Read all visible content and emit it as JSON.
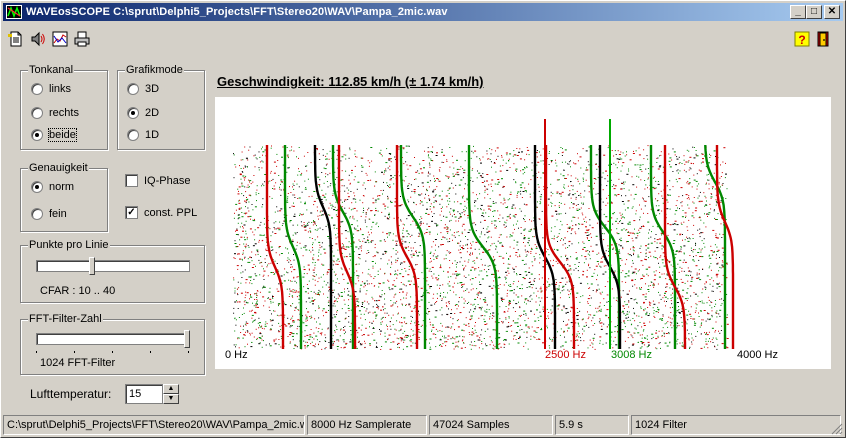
{
  "window": {
    "title": "WAVEosSCOPE  C:\\sprut\\Delphi5_Projects\\FFT\\Stereo20\\WAV\\Pampa_2mic.wav",
    "buttons": {
      "minimize": "_",
      "maximize": "□",
      "close": "✕"
    }
  },
  "toolbar": {
    "left": [
      {
        "name": "open-file-icon"
      },
      {
        "name": "audio-icon"
      },
      {
        "name": "chart-icon"
      },
      {
        "name": "print-icon"
      }
    ],
    "right": [
      {
        "name": "help-icon"
      },
      {
        "name": "exit-icon"
      }
    ]
  },
  "tonkanal": {
    "label": "Tonkanal",
    "options": [
      "links",
      "rechts",
      "beide"
    ],
    "selected": "beide"
  },
  "grafikmode": {
    "label": "Grafikmode",
    "options": [
      "3D",
      "2D",
      "1D"
    ],
    "selected": "2D"
  },
  "genauigkeit": {
    "label": "Genauigkeit",
    "options": [
      "norm",
      "fein"
    ],
    "selected": "norm"
  },
  "checks": {
    "iq_phase": {
      "label": "IQ-Phase",
      "checked": false
    },
    "const_ppl": {
      "label": "const. PPL",
      "checked": true
    }
  },
  "punkte": {
    "label": "Punkte pro Linie",
    "value_text": "CFAR : 10 .. 40",
    "position": 0.36
  },
  "fft": {
    "label": "FFT-Filter-Zahl",
    "value_text": "1024 FFT-Filter",
    "position": 1.0
  },
  "temperature": {
    "label": "Lufttemperatur:",
    "value": "15"
  },
  "speed": {
    "text": "Geschwindigkeit: 112.85 km/h (± 1.74 km/h)"
  },
  "plot": {
    "labels": {
      "left": "0 Hz",
      "red": "2500 Hz",
      "green": "3008 Hz",
      "right": "4000 Hz"
    },
    "colors": {
      "red": "#cc0000",
      "green": "#008800",
      "dark": "#000000",
      "accent_green": "#00aa00"
    }
  },
  "status": {
    "path": "C:\\sprut\\Delphi5_Projects\\FFT\\Stereo20\\WAV\\Pampa_2mic.wav",
    "samplerate": "8000 Hz Samplerate",
    "samples": "47024 Samples",
    "duration": "5.9 s",
    "filter": "1024 Filter"
  }
}
